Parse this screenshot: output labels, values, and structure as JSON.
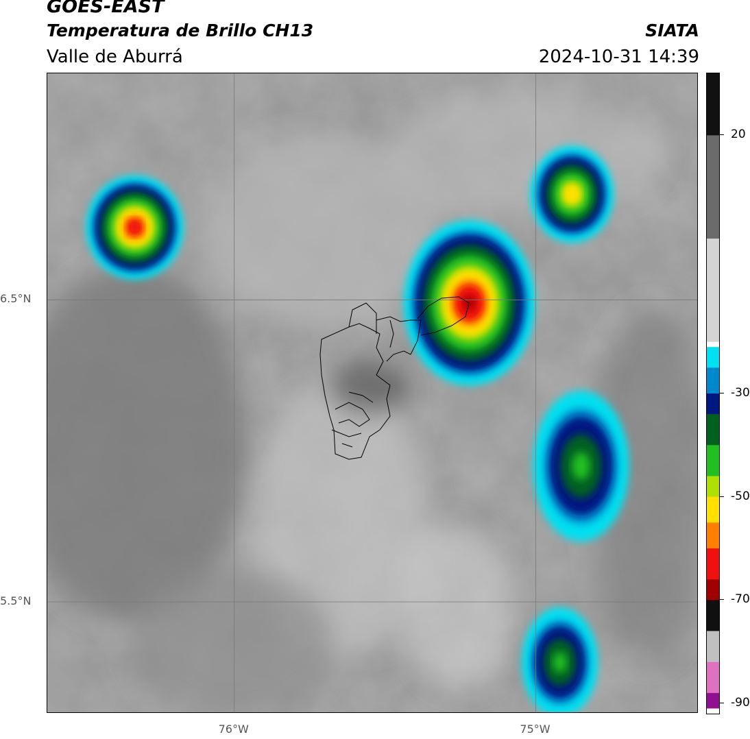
{
  "header": {
    "satellite": "GOES-EAST",
    "product": "Temperatura de Brillo CH13",
    "region": "Valle de Aburrá",
    "organization": "SIATA",
    "datetime": "2024-10-31 14:39"
  },
  "axes": {
    "lat_labels": [
      {
        "label": "6.5°N",
        "lat": 6.5
      },
      {
        "label": "5.5°N",
        "lat": 5.5
      }
    ],
    "lon_labels": [
      {
        "label": "76°W",
        "lon": -76
      },
      {
        "label": "75°W",
        "lon": -75
      }
    ],
    "lat_range": [
      5.13,
      7.25
    ],
    "lon_range": [
      -76.62,
      -74.46
    ],
    "gridlines": true
  },
  "colorbar": {
    "units_range": [
      -92,
      32
    ],
    "ticks": [
      {
        "label": "20",
        "value": 20
      },
      {
        "label": "-30",
        "value": -30
      },
      {
        "label": "-50",
        "value": -50
      },
      {
        "label": "-70",
        "value": -70
      },
      {
        "label": "-90",
        "value": -90
      }
    ]
  },
  "legend": {
    "colormap": [
      {
        "value": 32,
        "color": "#111111"
      },
      {
        "value": 20,
        "color": "#6b6b6b"
      },
      {
        "value": 0,
        "color": "#d4d4d4"
      },
      {
        "value": -20,
        "color": "#ffffff"
      },
      {
        "value": -21,
        "color": "#00e0f0"
      },
      {
        "value": -25,
        "color": "#0088cc"
      },
      {
        "value": -30,
        "color": "#001880"
      },
      {
        "value": -34,
        "color": "#006020"
      },
      {
        "value": -40,
        "color": "#20c020"
      },
      {
        "value": -46,
        "color": "#b0e000"
      },
      {
        "value": -50,
        "color": "#ffe000"
      },
      {
        "value": -55,
        "color": "#ff8000"
      },
      {
        "value": -60,
        "color": "#f01010"
      },
      {
        "value": -66,
        "color": "#a00000"
      },
      {
        "value": -70,
        "color": "#101010"
      },
      {
        "value": -76,
        "color": "#c0c0c0"
      },
      {
        "value": -82,
        "color": "#e070c0"
      },
      {
        "value": -88,
        "color": "#901090"
      },
      {
        "value": -91,
        "color": "#ffffff"
      }
    ]
  },
  "chart_data": {
    "type": "heatmap",
    "variable": "brightness temperature",
    "cold_cloud_cores": [
      {
        "name": "northwest-cell",
        "lat": 6.74,
        "lon": -76.33,
        "min_temp": -64
      },
      {
        "name": "central-cell",
        "lat": 6.49,
        "lon": -75.22,
        "min_temp": -66
      },
      {
        "name": "northeast-cell",
        "lat": 6.85,
        "lon": -74.88,
        "min_temp": -56
      },
      {
        "name": "east-cell",
        "lat": 5.95,
        "lon": -74.85,
        "min_temp": -44
      },
      {
        "name": "south-cell",
        "lat": 5.3,
        "lon": -74.92,
        "min_temp": -42
      }
    ]
  }
}
